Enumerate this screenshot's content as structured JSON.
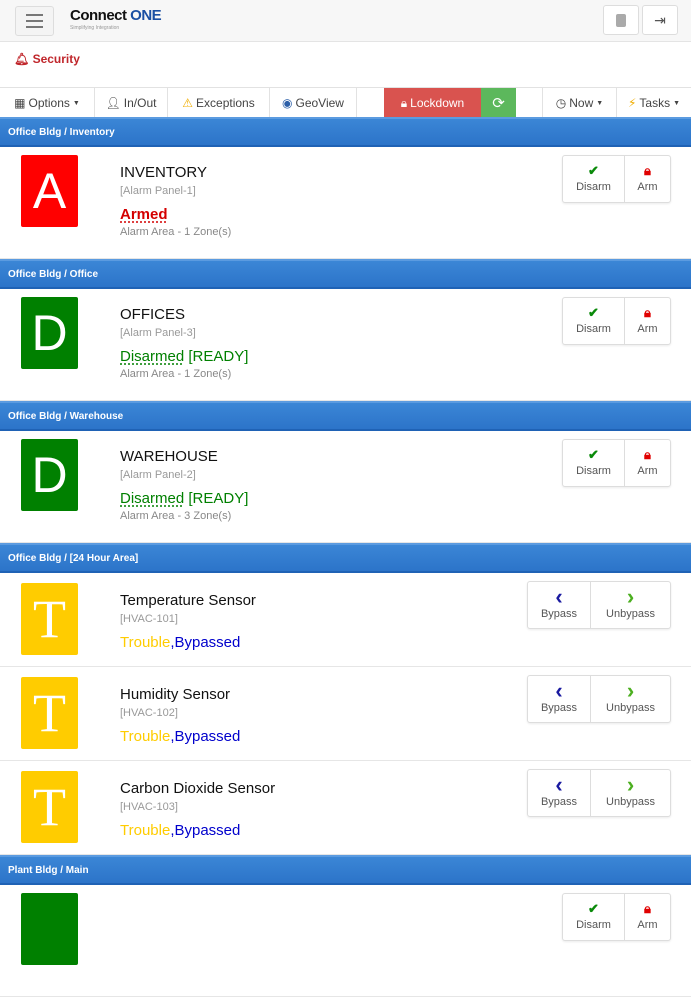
{
  "header": {
    "logo_main": "Connect",
    "logo_accent": "ONE",
    "logo_tagline": "Simplifying Integration",
    "icons": [
      "menu-icon",
      "user-icon",
      "logout-icon"
    ]
  },
  "page": {
    "title": "Security"
  },
  "toolbar": {
    "options": "Options",
    "inout": "In/Out",
    "exceptions": "Exceptions",
    "geoview": "GeoView",
    "lockdown": "Lockdown",
    "now": "Now",
    "tasks": "Tasks"
  },
  "colors": {
    "section": "#2c74c9",
    "armed": "#ff0000",
    "disarmed": "#008000",
    "trouble": "#ffcc00",
    "bypassed": "#0000cc",
    "lockdown": "#d9534f",
    "refresh": "#5cb85c"
  },
  "sections": [
    {
      "title": "Office Bldg / Inventory",
      "type": "area",
      "items": [
        {
          "letter": "A",
          "color": "#ff0000",
          "name": "INVENTORY",
          "sub": "[Alarm Panel-1]",
          "status": "Armed",
          "status_color": "#d40000",
          "ready": "",
          "area": "Alarm Area - 1 Zone(s)"
        }
      ]
    },
    {
      "title": "Office Bldg / Office",
      "type": "area",
      "items": [
        {
          "letter": "D",
          "color": "#008000",
          "name": "OFFICES",
          "sub": "[Alarm Panel-3]",
          "status": "Disarmed",
          "status_color": "#008000",
          "ready": " [READY]",
          "area": "Alarm Area - 1 Zone(s)"
        }
      ]
    },
    {
      "title": "Office Bldg / Warehouse",
      "type": "area",
      "items": [
        {
          "letter": "D",
          "color": "#008000",
          "name": "WAREHOUSE",
          "sub": "[Alarm Panel-2]",
          "status": "Disarmed",
          "status_color": "#008000",
          "ready": " [READY]",
          "area": "Alarm Area - 3 Zone(s)"
        }
      ]
    },
    {
      "title": "Office Bldg / [24 Hour Area]",
      "type": "zone",
      "items": [
        {
          "letter": "T",
          "color": "#ffcc00",
          "name": "Temperature Sensor",
          "sub": "[HVAC-101]",
          "trouble": "Trouble",
          "bypassed": ",Bypassed"
        },
        {
          "letter": "T",
          "color": "#ffcc00",
          "name": "Humidity Sensor",
          "sub": "[HVAC-102]",
          "trouble": "Trouble",
          "bypassed": ",Bypassed"
        },
        {
          "letter": "T",
          "color": "#ffcc00",
          "name": "Carbon Dioxide Sensor",
          "sub": "[HVAC-103]",
          "trouble": "Trouble",
          "bypassed": ",Bypassed"
        }
      ]
    },
    {
      "title": "Plant Bldg / Main",
      "type": "area",
      "items": [
        {
          "letter": "",
          "color": "#008000",
          "name": "",
          "sub": "",
          "status": "",
          "status_color": "#008000",
          "ready": "",
          "area": ""
        }
      ]
    }
  ],
  "actions": {
    "disarm": "Disarm",
    "arm": "Arm",
    "bypass": "Bypass",
    "unbypass": "Unbypass"
  }
}
